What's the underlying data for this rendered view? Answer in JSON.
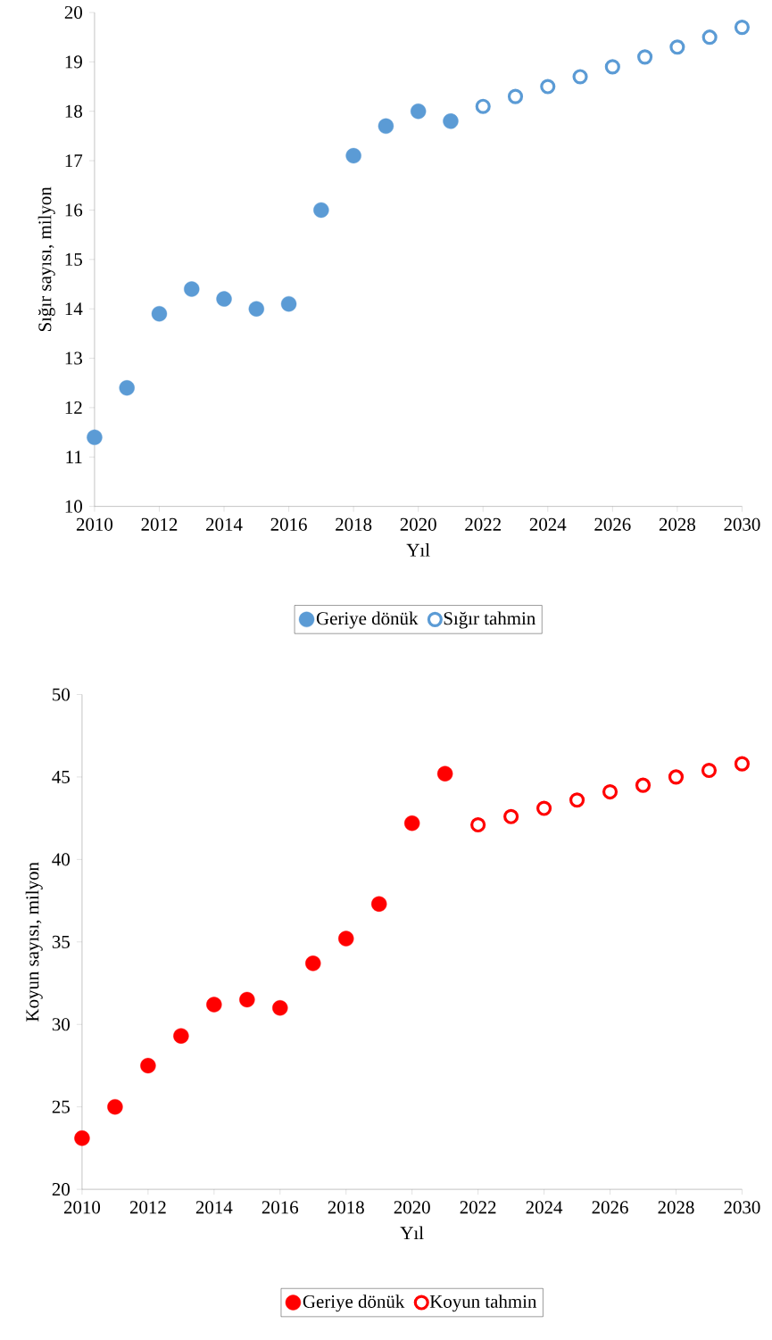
{
  "chart_data": [
    {
      "type": "scatter",
      "xlabel": "Yıl",
      "ylabel": "Sığır sayısı, milyon",
      "xlim": [
        2010,
        2030
      ],
      "ylim": [
        10,
        20
      ],
      "xticks": [
        2010,
        2012,
        2014,
        2016,
        2018,
        2020,
        2022,
        2024,
        2026,
        2028,
        2030
      ],
      "yticks": [
        10,
        11,
        12,
        13,
        14,
        15,
        16,
        17,
        18,
        19,
        20
      ],
      "grid": false,
      "legend": "bottom",
      "marker": "circle",
      "series": [
        {
          "name": "Geriye dönük",
          "color": "#5b9bd5",
          "x": [
            2010,
            2011,
            2012,
            2013,
            2014,
            2015,
            2016,
            2017,
            2018,
            2019,
            2020,
            2021
          ],
          "values": [
            11.4,
            12.4,
            13.9,
            14.4,
            14.2,
            14.0,
            14.1,
            16.0,
            17.1,
            17.7,
            18.0,
            17.8
          ]
        },
        {
          "name": "Sığır tahmin",
          "color": "#5b9bd5",
          "x": [
            2022,
            2023,
            2024,
            2025,
            2026,
            2027,
            2028,
            2029,
            2030
          ],
          "values": [
            18.1,
            18.3,
            18.5,
            18.7,
            18.9,
            19.1,
            19.3,
            19.5,
            19.7
          ]
        }
      ]
    },
    {
      "type": "scatter",
      "xlabel": "Yıl",
      "ylabel": "Koyun sayısı, milyon",
      "xlim": [
        2010,
        2030
      ],
      "ylim": [
        20,
        50
      ],
      "xticks": [
        2010,
        2012,
        2014,
        2016,
        2018,
        2020,
        2022,
        2024,
        2026,
        2028,
        2030
      ],
      "yticks": [
        20,
        25,
        30,
        35,
        40,
        45,
        50
      ],
      "grid": false,
      "legend": "bottom",
      "marker": "circle",
      "series": [
        {
          "name": "Geriye dönük",
          "color": "#ff0000",
          "x": [
            2010,
            2011,
            2012,
            2013,
            2014,
            2015,
            2016,
            2017,
            2018,
            2019,
            2020,
            2021
          ],
          "values": [
            23.1,
            25.0,
            27.5,
            29.3,
            31.2,
            31.5,
            31.0,
            33.7,
            35.2,
            37.3,
            42.2,
            45.2
          ]
        },
        {
          "name": "Koyun tahmin",
          "color": "#ff0000",
          "x": [
            2022,
            2023,
            2024,
            2025,
            2026,
            2027,
            2028,
            2029,
            2030
          ],
          "values": [
            42.1,
            42.6,
            43.1,
            43.6,
            44.1,
            44.5,
            45.0,
            45.4,
            45.8
          ]
        }
      ]
    }
  ]
}
